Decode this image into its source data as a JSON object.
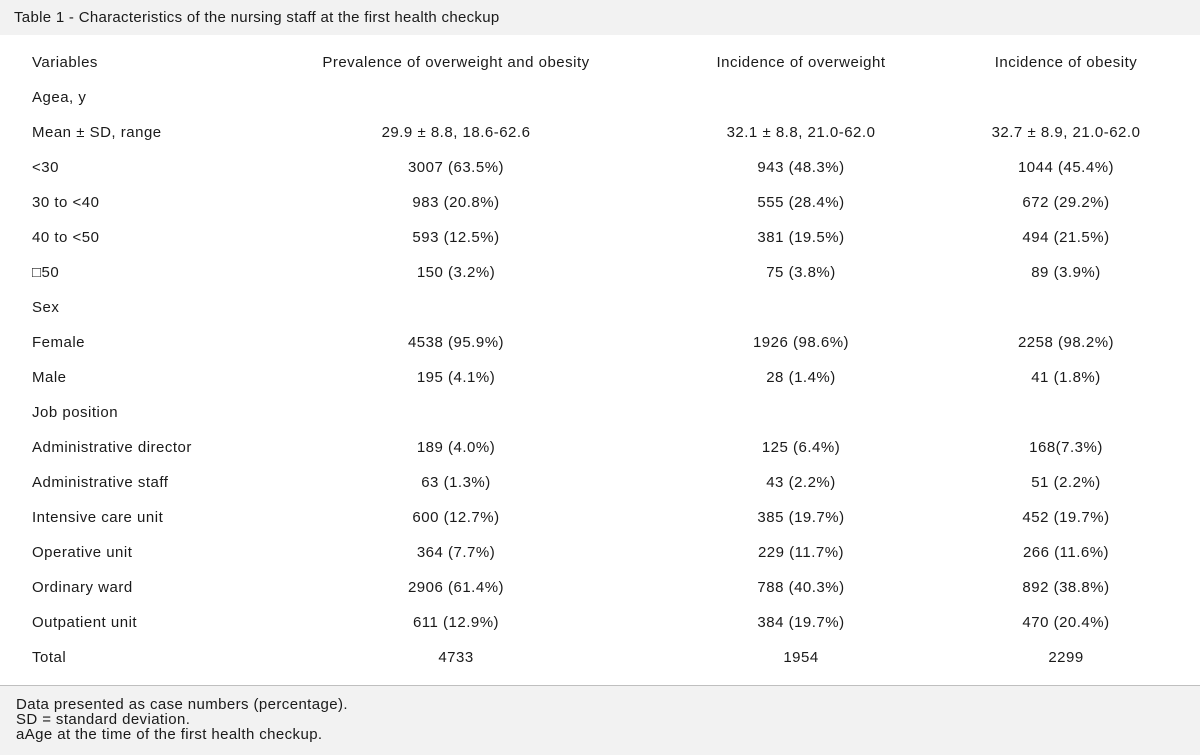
{
  "title": "Table 1 - Characteristics of the nursing staff at the first health checkup",
  "columns": [
    "Variables",
    "Prevalence of overweight and obesity",
    "Incidence of overweight",
    "Incidence of obesity"
  ],
  "rows": [
    [
      "Agea, y",
      "",
      "",
      ""
    ],
    [
      "Mean ± SD, range",
      "29.9 ± 8.8, 18.6-62.6",
      "32.1 ± 8.8, 21.0-62.0",
      "32.7 ± 8.9, 21.0-62.0"
    ],
    [
      "<30",
      "3007 (63.5%)",
      "943 (48.3%)",
      "1044 (45.4%)"
    ],
    [
      "30 to <40",
      "983 (20.8%)",
      "555 (28.4%)",
      "672 (29.2%)"
    ],
    [
      "40 to <50",
      "593 (12.5%)",
      "381 (19.5%)",
      "494 (21.5%)"
    ],
    [
      "□50",
      "150 (3.2%)",
      "75 (3.8%)",
      "89 (3.9%)"
    ],
    [
      "Sex",
      "",
      "",
      ""
    ],
    [
      "Female",
      "4538 (95.9%)",
      "1926 (98.6%)",
      "2258 (98.2%)"
    ],
    [
      "Male",
      "195 (4.1%)",
      "28 (1.4%)",
      "41 (1.8%)"
    ],
    [
      "Job position",
      "",
      "",
      ""
    ],
    [
      "Administrative director",
      "189 (4.0%)",
      "125 (6.4%)",
      "168(7.3%)"
    ],
    [
      "Administrative staff",
      "63 (1.3%)",
      "43 (2.2%)",
      "51 (2.2%)"
    ],
    [
      "Intensive care unit",
      "600 (12.7%)",
      "385 (19.7%)",
      "452 (19.7%)"
    ],
    [
      "Operative unit",
      "364 (7.7%)",
      "229 (11.7%)",
      "266 (11.6%)"
    ],
    [
      "Ordinary ward",
      "2906 (61.4%)",
      "788 (40.3%)",
      "892 (38.8%)"
    ],
    [
      "Outpatient unit",
      "611 (12.9%)",
      "384 (19.7%)",
      "470 (20.4%)"
    ],
    [
      "Total",
      "4733",
      "1954",
      "2299"
    ]
  ],
  "footnotes": [
    "Data presented as case numbers (percentage).",
    "SD = standard deviation.",
    "aAge at the time of the first health checkup."
  ]
}
